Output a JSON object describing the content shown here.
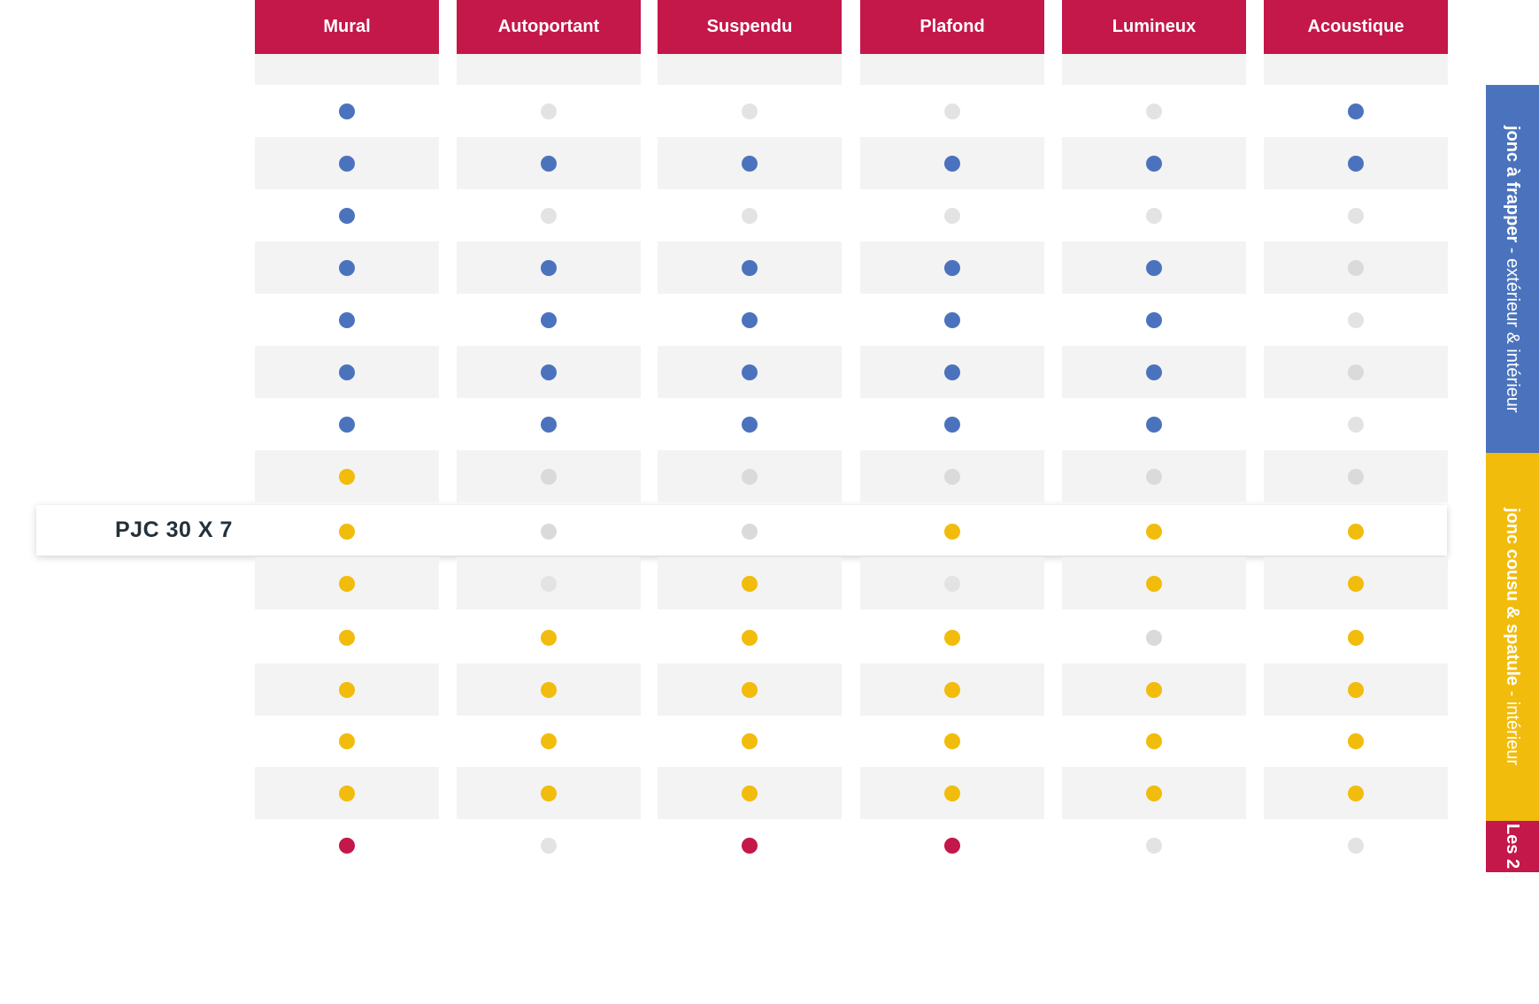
{
  "columns": [
    {
      "label": "Mural"
    },
    {
      "label": "Autoportant"
    },
    {
      "label": "Suspendu"
    },
    {
      "label": "Plafond"
    },
    {
      "label": "Lumineux"
    },
    {
      "label": "Acoustique"
    }
  ],
  "colors": {
    "header": "#c4174a",
    "blue": "#4b73bd",
    "yellow": "#f1bc0c",
    "red": "#c4174a",
    "grey": "#e3e3e3",
    "row_shade": "#f3f3f3"
  },
  "highlight_row": {
    "label": "PJC 30 X 7",
    "row_index": 8
  },
  "rows": [
    [
      "blue",
      "grey",
      "grey",
      "grey",
      "grey",
      "blue"
    ],
    [
      "blue",
      "blue",
      "blue",
      "blue",
      "blue",
      "blue"
    ],
    [
      "blue",
      "grey",
      "grey",
      "grey",
      "grey",
      "grey"
    ],
    [
      "blue",
      "blue",
      "blue",
      "blue",
      "blue",
      "grey2"
    ],
    [
      "blue",
      "blue",
      "blue",
      "blue",
      "blue",
      "grey"
    ],
    [
      "blue",
      "blue",
      "blue",
      "blue",
      "blue",
      "grey2"
    ],
    [
      "blue",
      "blue",
      "blue",
      "blue",
      "blue",
      "grey"
    ],
    [
      "yellow",
      "grey2",
      "grey2",
      "grey2",
      "grey2",
      "grey2"
    ],
    [
      "yellow",
      "grey2",
      "grey2",
      "yellow",
      "yellow",
      "yellow"
    ],
    [
      "yellow",
      "grey",
      "yellow",
      "grey",
      "yellow",
      "yellow"
    ],
    [
      "yellow",
      "yellow",
      "yellow",
      "yellow",
      "grey2",
      "yellow"
    ],
    [
      "yellow",
      "yellow",
      "yellow",
      "yellow",
      "yellow",
      "yellow"
    ],
    [
      "yellow",
      "yellow",
      "yellow",
      "yellow",
      "yellow",
      "yellow"
    ],
    [
      "yellow",
      "yellow",
      "yellow",
      "yellow",
      "yellow",
      "yellow"
    ],
    [
      "red",
      "grey",
      "red",
      "red",
      "grey",
      "grey"
    ]
  ],
  "side_tabs": {
    "blue": {
      "bold": "jonc à frapper",
      "rest": " - extérieur & intérieur"
    },
    "yellow": {
      "bold": "jonc cousu & spatule",
      "rest": " - intérieur"
    },
    "red": {
      "label": "Les 2"
    }
  }
}
